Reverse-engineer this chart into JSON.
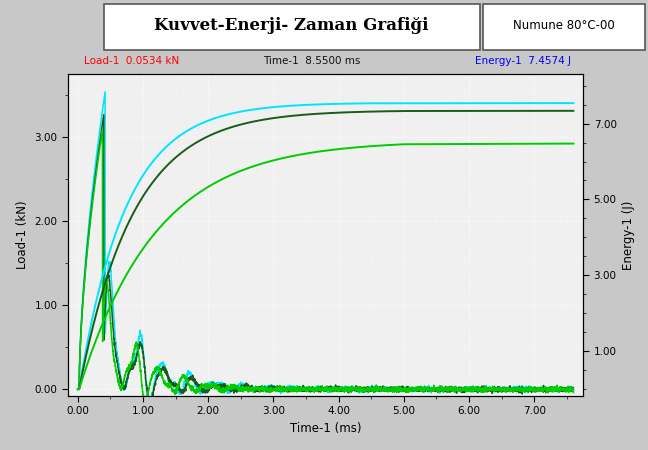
{
  "title": "Kuvvet-Enerji- Zaman Grafiği",
  "subtitle": "Numune 80°C-00",
  "xlabel": "Time-1 (ms)",
  "ylabel_left": "Load-1 (kN)",
  "ylabel_right": "Energy-1 (J)",
  "annotation_load": "Load-1  0.0534 kN",
  "annotation_time": "Time-1  8.5500 ms",
  "annotation_energy": "Energy-1  7.4574 J",
  "xlim": [
    -0.15,
    7.75
  ],
  "ylim_left": [
    -0.08,
    3.75
  ],
  "ylim_right": [
    -0.18,
    8.3
  ],
  "bg_color": "#c8c8c8",
  "plot_bg_color": "#f0f0f0",
  "grid_color": "#ffffff",
  "xticks": [
    0.0,
    1.0,
    2.0,
    3.0,
    4.0,
    5.0,
    6.0,
    7.0
  ],
  "yticks_left": [
    0.0,
    1.0,
    2.0,
    3.0
  ],
  "yticks_right": [
    1.0,
    3.0,
    5.0,
    7.0
  ],
  "color_cyan": "#00e5ff",
  "color_darkgreen": "#1a5c1a",
  "color_brightgreen": "#00cc00"
}
